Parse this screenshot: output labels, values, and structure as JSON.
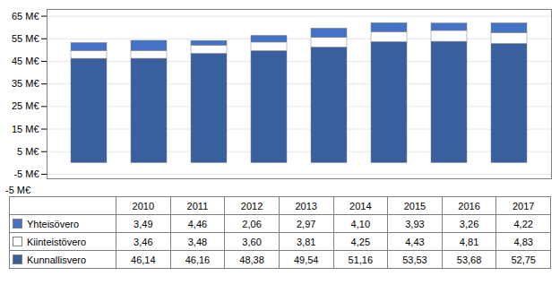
{
  "chart_data": {
    "type": "bar",
    "stacked": true,
    "categories": [
      2010,
      2011,
      2012,
      2013,
      2014,
      2015,
      2016,
      2017
    ],
    "series": [
      {
        "name": "Kunnallisvero",
        "color": "#3A5F9F",
        "values": [
          46.14,
          46.16,
          48.38,
          49.54,
          51.16,
          53.53,
          53.68,
          52.75
        ],
        "value_labels": [
          "46,14",
          "46,16",
          "48,38",
          "49,54",
          "51,16",
          "53,53",
          "53,68",
          "52,75"
        ]
      },
      {
        "name": "Kiinteistövero",
        "color": "#FFFFFF",
        "values": [
          3.46,
          3.48,
          3.6,
          3.81,
          4.25,
          4.43,
          4.81,
          4.83
        ],
        "value_labels": [
          "3,46",
          "3,48",
          "3,60",
          "3,81",
          "4,25",
          "4,43",
          "4,81",
          "4,83"
        ]
      },
      {
        "name": "Yhteisövero",
        "color": "#4472C4",
        "values": [
          3.49,
          4.46,
          2.06,
          2.97,
          4.1,
          3.93,
          3.26,
          4.22
        ],
        "value_labels": [
          "3,49",
          "4,46",
          "2,06",
          "2,97",
          "4,10",
          "3,93",
          "3,26",
          "4,22"
        ]
      }
    ],
    "ylim": [
      -7,
      68
    ],
    "yticks": [
      {
        "value": -5,
        "label": "-5 M€"
      },
      {
        "value": 5,
        "label": "5 M€"
      },
      {
        "value": 15,
        "label": "15 M€"
      },
      {
        "value": 25,
        "label": "25 M€"
      },
      {
        "value": 35,
        "label": "35 M€"
      },
      {
        "value": 45,
        "label": "45 M€"
      },
      {
        "value": 55,
        "label": "55 M€"
      },
      {
        "value": 65,
        "label": "65 M€"
      }
    ],
    "grid": true,
    "tick_labels": "y",
    "data_labels": true,
    "annotations": [
      "-5 M€"
    ]
  }
}
